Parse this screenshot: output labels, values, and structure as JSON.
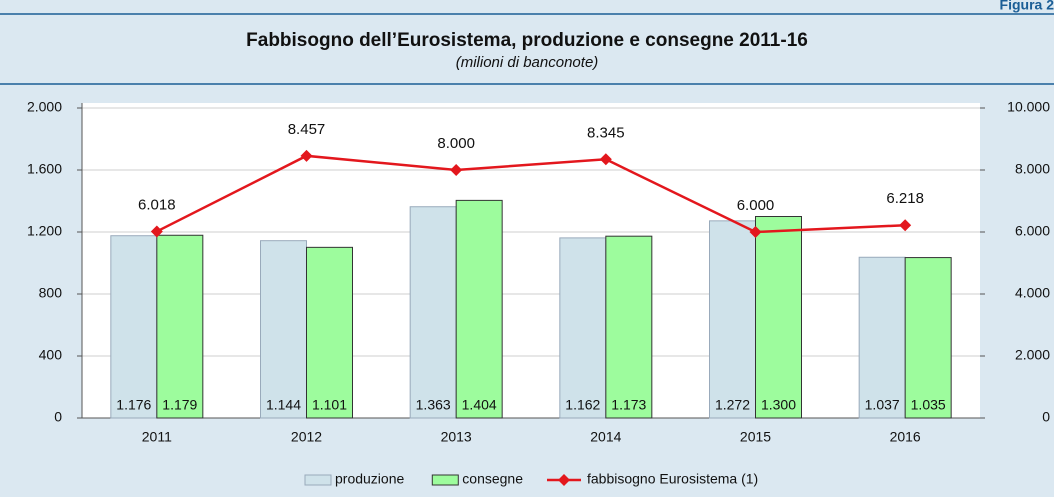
{
  "figure_label": "Figura 2",
  "chart_data": {
    "type": "bar",
    "title": "Fabbisogno dell’Eurosistema, produzione e consegne 2011-16",
    "subtitle": "(milioni di banconote)",
    "categories": [
      "2011",
      "2012",
      "2013",
      "2014",
      "2015",
      "2016"
    ],
    "series": [
      {
        "name": "produzione",
        "type": "bar",
        "color": "#cfe2ea",
        "values": [
          1176,
          1144,
          1363,
          1162,
          1272,
          1037
        ],
        "value_labels": [
          "1.176",
          "1.144",
          "1.363",
          "1.162",
          "1.272",
          "1.037"
        ]
      },
      {
        "name": "consegne",
        "type": "bar",
        "color": "#9dfc9d",
        "values": [
          1179,
          1101,
          1404,
          1173,
          1300,
          1035
        ],
        "value_labels": [
          "1.179",
          "1.101",
          "1.404",
          "1.173",
          "1.300",
          "1.035"
        ]
      },
      {
        "name": "fabbisogno Eurosistema (1)",
        "type": "line",
        "axis": "y2",
        "color": "#e3171d",
        "values": [
          6018,
          8457,
          8000,
          8345,
          6000,
          6218
        ],
        "value_labels": [
          "6.018",
          "8.457",
          "8.000",
          "8.345",
          "6.000",
          "6.218"
        ]
      }
    ],
    "ylim": [
      0,
      2000
    ],
    "yticks": [
      0,
      {
        "value": 400,
        "label": "400"
      },
      800,
      {
        "value": 1200,
        "label": "1.200"
      },
      {
        "value": 1600,
        "label": "1.600"
      },
      {
        "value": 2000,
        "label": "2.000"
      }
    ],
    "y2lim": [
      0,
      10000
    ],
    "y2ticks": [
      0,
      {
        "value": 2000,
        "label": "2.000"
      },
      {
        "value": 4000,
        "label": "4.000"
      },
      {
        "value": 6000,
        "label": "6.000"
      },
      {
        "value": 8000,
        "label": "8.000"
      },
      {
        "value": 10000,
        "label": "10.000"
      }
    ],
    "grid": true,
    "legend": "bottom"
  }
}
